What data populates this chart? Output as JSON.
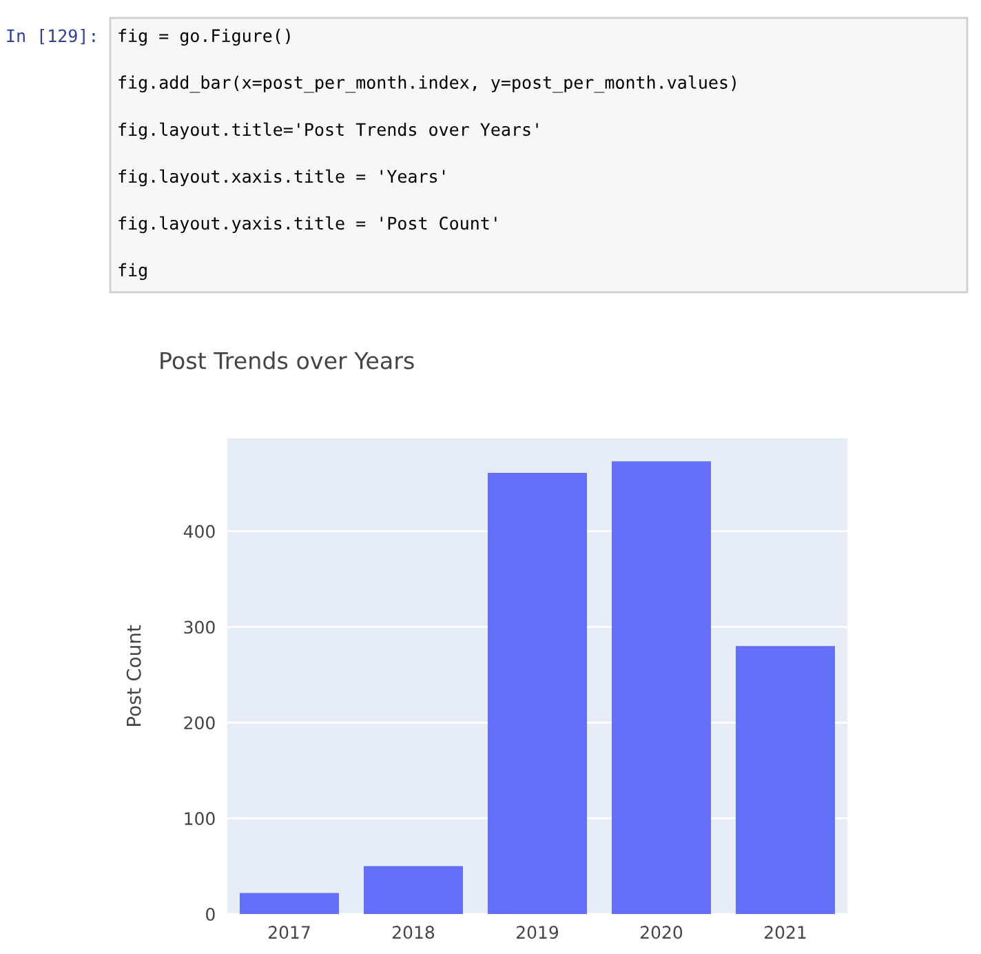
{
  "chart_data": {
    "type": "bar",
    "title": "Post Trends over Years",
    "ylabel": "Post Count",
    "categories": [
      "2017",
      "2018",
      "2019",
      "2020",
      "2021"
    ],
    "values": [
      22,
      50,
      461,
      473,
      280
    ],
    "color": "#636efa",
    "ylim": [
      0,
      497
    ],
    "yticks": [
      0,
      100,
      200,
      300,
      400
    ],
    "grid": "y",
    "annotations": [
      "In [129]:",
      "fig = go.Figure()",
      "fig.add_bar(x=post_per_month.index, y=post_per_month.values)",
      "fig.layout.title='Post Trends over Years'",
      "fig.layout.xaxis.title = 'Years'",
      "fig.layout.yaxis.title = 'Post Count'",
      "fig"
    ]
  }
}
